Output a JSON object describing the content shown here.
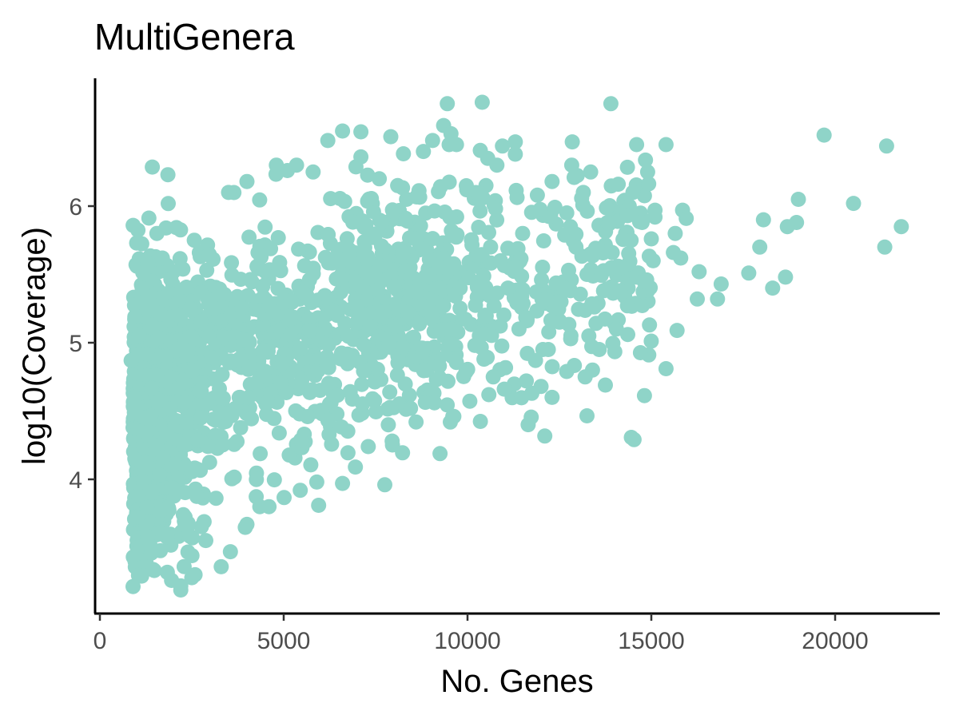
{
  "chart_data": {
    "type": "scatter",
    "title": "MultiGenera",
    "xlabel": "No. Genes",
    "ylabel": "log10(Coverage)",
    "xlim": [
      -200,
      22700
    ],
    "ylim": [
      3.05,
      6.95
    ],
    "xticks": [
      0,
      5000,
      10000,
      15000,
      20000
    ],
    "yticks": [
      4,
      5,
      6
    ],
    "xtick_labels": [
      "0",
      "5000",
      "10000",
      "15000",
      "20000"
    ],
    "ytick_labels": [
      "4",
      "5",
      "6"
    ],
    "grid": false,
    "legend": "none",
    "point_color": "#8fd4c8",
    "n_points_estimate": 2000,
    "series": [
      {
        "values": [
          [
            19700,
            6.52
          ],
          [
            21400,
            6.44
          ],
          [
            20500,
            6.02
          ],
          [
            21800,
            5.85
          ],
          [
            21350,
            5.7
          ],
          [
            19000,
            6.05
          ],
          [
            18950,
            5.88
          ],
          [
            18700,
            5.85
          ],
          [
            18050,
            5.9
          ],
          [
            17950,
            5.7
          ],
          [
            18650,
            5.48
          ],
          [
            18300,
            5.4
          ],
          [
            17650,
            5.51
          ],
          [
            16900,
            5.43
          ],
          [
            16800,
            5.32
          ],
          [
            16300,
            5.52
          ],
          [
            16250,
            5.32
          ],
          [
            15850,
            5.97
          ],
          [
            15950,
            5.91
          ],
          [
            15800,
            5.62
          ],
          [
            15650,
            5.8
          ],
          [
            15600,
            5.66
          ],
          [
            15700,
            5.09
          ],
          [
            15400,
            6.45
          ],
          [
            15400,
            4.81
          ],
          [
            15100,
            5.97
          ],
          [
            15100,
            5.92
          ],
          [
            15000,
            5.76
          ],
          [
            15050,
            5.6
          ],
          [
            14950,
            5.13
          ],
          [
            14900,
            6.25
          ],
          [
            14750,
            5.88
          ],
          [
            14600,
            6.45
          ],
          [
            14500,
            6.1
          ],
          [
            14400,
            6.0
          ],
          [
            14350,
            5.93
          ],
          [
            14300,
            5.8
          ],
          [
            14450,
            5.75
          ],
          [
            14200,
            5.55
          ],
          [
            14150,
            5.38
          ],
          [
            14350,
            5.27
          ],
          [
            14600,
            5.48
          ],
          [
            14800,
            5.45
          ],
          [
            14050,
            5.1
          ],
          [
            13900,
            6.75
          ],
          [
            14100,
            6.16
          ],
          [
            13850,
            5.87
          ],
          [
            13700,
            5.38
          ],
          [
            13750,
            4.69
          ],
          [
            13400,
            4.8
          ],
          [
            13200,
            4.75
          ],
          [
            13300,
            5.05
          ],
          [
            13250,
            5.5
          ],
          [
            13350,
            6.25
          ],
          [
            13150,
            6.1
          ],
          [
            12850,
            6.47
          ],
          [
            12900,
            6.21
          ],
          [
            12800,
            5.85
          ],
          [
            12950,
            5.7
          ],
          [
            12750,
            5.53
          ],
          [
            12650,
            5.4
          ],
          [
            12500,
            5.15
          ],
          [
            12450,
            5.3
          ],
          [
            12300,
            4.6
          ],
          [
            12050,
            4.95
          ],
          [
            12000,
            4.68
          ],
          [
            11650,
            4.4
          ],
          [
            11750,
            4.63
          ],
          [
            11600,
            4.72
          ],
          [
            11850,
            4.87
          ],
          [
            11000,
            4.66
          ],
          [
            10700,
            4.75
          ],
          [
            10200,
            4.98
          ],
          [
            10400,
            6.76
          ],
          [
            9450,
            6.75
          ],
          [
            9350,
            6.59
          ],
          [
            9550,
            6.53
          ],
          [
            9700,
            6.45
          ],
          [
            9500,
            6.45
          ],
          [
            10550,
            6.35
          ],
          [
            11300,
            6.47
          ],
          [
            11300,
            6.38
          ],
          [
            10950,
            6.44
          ],
          [
            10800,
            6.3
          ],
          [
            11900,
            6.08
          ],
          [
            12300,
            6.18
          ],
          [
            12700,
            5.95
          ],
          [
            11500,
            5.8
          ],
          [
            10900,
            5.6
          ],
          [
            11100,
            5.4
          ],
          [
            11400,
            5.1
          ],
          [
            10500,
            5.2
          ],
          [
            9800,
            5.4
          ],
          [
            9600,
            4.46
          ],
          [
            9100,
            4.56
          ],
          [
            8600,
            4.42
          ],
          [
            8450,
            4.52
          ],
          [
            7950,
            4.28
          ],
          [
            7750,
            3.96
          ],
          [
            7300,
            4.24
          ],
          [
            6950,
            4.09
          ],
          [
            6600,
            3.97
          ],
          [
            5950,
            3.81
          ],
          [
            5900,
            3.98
          ],
          [
            5450,
            3.92
          ],
          [
            4600,
            3.8
          ],
          [
            4350,
            3.8
          ],
          [
            4000,
            3.67
          ],
          [
            3300,
            3.36
          ],
          [
            3550,
            3.47
          ],
          [
            2500,
            3.28
          ],
          [
            2200,
            3.19
          ],
          [
            1950,
            3.26
          ],
          [
            2200,
            3.22
          ],
          [
            1400,
            3.46
          ],
          [
            1200,
            3.58
          ],
          [
            1850,
            6.23
          ],
          [
            1800,
            5.84
          ],
          [
            1550,
            5.8
          ],
          [
            1700,
            5.62
          ],
          [
            1000,
            5.73
          ],
          [
            1300,
            5.58
          ],
          [
            1150,
            5.4
          ],
          [
            950,
            5.19
          ],
          [
            850,
            4.87
          ],
          [
            950,
            4.6
          ],
          [
            950,
            4.15
          ],
          [
            1050,
            3.88
          ],
          [
            1300,
            3.58
          ],
          [
            3500,
            6.1
          ],
          [
            4000,
            6.18
          ],
          [
            4800,
            6.3
          ],
          [
            5100,
            6.26
          ],
          [
            5350,
            6.3
          ],
          [
            5800,
            6.25
          ],
          [
            6200,
            6.48
          ],
          [
            6600,
            6.55
          ],
          [
            7100,
            6.36
          ],
          [
            7600,
            6.2
          ],
          [
            8100,
            6.15
          ],
          [
            8800,
            6.4
          ],
          [
            9050,
            6.48
          ]
        ]
      }
    ]
  }
}
